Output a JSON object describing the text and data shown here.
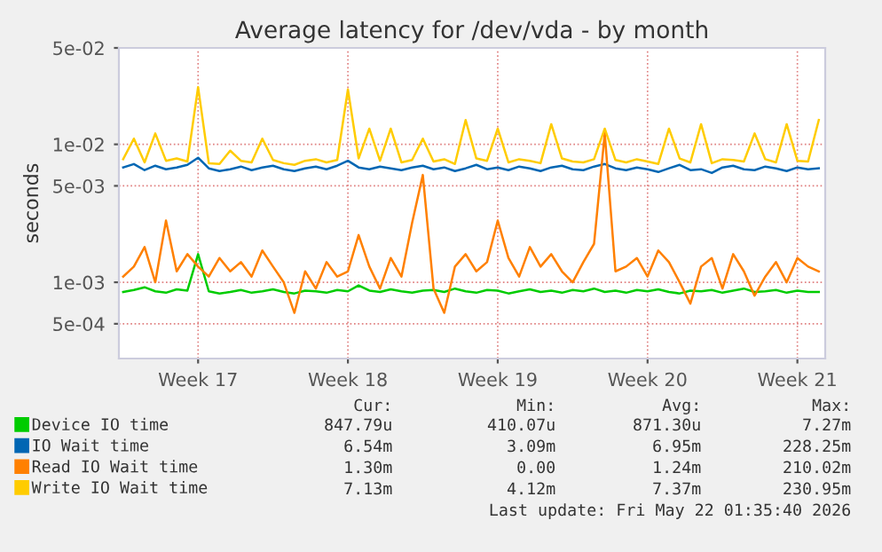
{
  "chart_data": {
    "type": "line",
    "title": "Average latency for /dev/vda - by month",
    "ylabel": "seconds",
    "log": "y",
    "grid": true,
    "legend": "bottom",
    "marker": "none",
    "line_style": "solid",
    "ylim": [
      0.00028,
      0.05
    ],
    "yticks": [
      {
        "value": 0.0005,
        "label": "5e-04"
      },
      {
        "value": 0.001,
        "label": "1e-03"
      },
      {
        "value": 0.005,
        "label": "5e-03"
      },
      {
        "value": 0.01,
        "label": "1e-02"
      },
      {
        "value": 0.05,
        "label": "5e-02"
      }
    ],
    "categories": [
      null,
      null,
      null,
      null,
      null,
      null,
      null,
      "Week 17",
      null,
      null,
      null,
      null,
      null,
      null,
      null,
      null,
      null,
      null,
      null,
      null,
      null,
      "Week 18",
      null,
      null,
      null,
      null,
      null,
      null,
      null,
      null,
      null,
      null,
      null,
      null,
      null,
      "Week 19",
      null,
      null,
      null,
      null,
      null,
      null,
      null,
      null,
      null,
      null,
      null,
      null,
      null,
      "Week 20",
      null,
      null,
      null,
      null,
      null,
      null,
      null,
      null,
      null,
      null,
      null,
      null,
      null,
      "Week 21",
      null,
      null
    ],
    "series": [
      {
        "name": "Device IO time",
        "color": "#00cc00",
        "values": [
          0.00085,
          0.00088,
          0.00092,
          0.00086,
          0.00084,
          0.00089,
          0.00087,
          0.0016,
          0.00086,
          0.00083,
          0.00085,
          0.00088,
          0.00084,
          0.00086,
          0.00089,
          0.00085,
          0.00083,
          0.00087,
          0.00086,
          0.00084,
          0.00088,
          0.00086,
          0.00095,
          0.00087,
          0.00085,
          0.00089,
          0.00086,
          0.00084,
          0.00087,
          0.00088,
          0.00085,
          0.0009,
          0.00086,
          0.00084,
          0.00088,
          0.00087,
          0.00083,
          0.00086,
          0.00089,
          0.00085,
          0.00087,
          0.00084,
          0.00088,
          0.00086,
          0.0009,
          0.00085,
          0.00087,
          0.00084,
          0.00088,
          0.00086,
          0.00089,
          0.00085,
          0.00083,
          0.00087,
          0.00086,
          0.00088,
          0.00084,
          0.00087,
          0.0009,
          0.00085,
          0.00086,
          0.00088,
          0.00084,
          0.00087,
          0.00085,
          0.00085
        ]
      },
      {
        "name": "IO Wait time",
        "color": "#0066b3",
        "values": [
          0.0068,
          0.0072,
          0.0065,
          0.007,
          0.0066,
          0.0068,
          0.0071,
          0.008,
          0.0067,
          0.0064,
          0.0066,
          0.0069,
          0.0065,
          0.0068,
          0.007,
          0.0066,
          0.0064,
          0.0067,
          0.0069,
          0.0066,
          0.007,
          0.0076,
          0.0068,
          0.0066,
          0.0069,
          0.0067,
          0.0065,
          0.0068,
          0.007,
          0.0066,
          0.0068,
          0.0064,
          0.0067,
          0.0071,
          0.0066,
          0.0068,
          0.0065,
          0.0069,
          0.0067,
          0.0064,
          0.0068,
          0.007,
          0.0066,
          0.0065,
          0.0069,
          0.0072,
          0.0067,
          0.0065,
          0.0068,
          0.0066,
          0.0063,
          0.0067,
          0.0071,
          0.0065,
          0.0066,
          0.0062,
          0.0068,
          0.007,
          0.0066,
          0.0065,
          0.0069,
          0.0067,
          0.0064,
          0.0068,
          0.0066,
          0.0067
        ]
      },
      {
        "name": "Read IO Wait time",
        "color": "#ff8000",
        "values": [
          0.0011,
          0.0013,
          0.0018,
          0.001,
          0.0028,
          0.0012,
          0.0016,
          0.0013,
          0.0011,
          0.0015,
          0.0012,
          0.0014,
          0.0011,
          0.0017,
          0.0013,
          0.001,
          0.0006,
          0.0012,
          0.0009,
          0.0014,
          0.0011,
          0.0012,
          0.0022,
          0.0013,
          0.0009,
          0.0015,
          0.0011,
          0.0027,
          0.006,
          0.0009,
          0.0006,
          0.0013,
          0.0016,
          0.0012,
          0.0014,
          0.0028,
          0.0015,
          0.0011,
          0.0018,
          0.0013,
          0.0016,
          0.0012,
          0.001,
          0.0014,
          0.0019,
          0.012,
          0.0012,
          0.0013,
          0.0015,
          0.0011,
          0.0017,
          0.0014,
          0.001,
          0.0007,
          0.0013,
          0.0015,
          0.0009,
          0.0016,
          0.0012,
          0.0008,
          0.0011,
          0.0014,
          0.001,
          0.0015,
          0.0013,
          0.0012
        ]
      },
      {
        "name": "Write IO Wait time",
        "color": "#ffcc00",
        "values": [
          0.0078,
          0.011,
          0.0074,
          0.012,
          0.0076,
          0.0079,
          0.0075,
          0.026,
          0.0073,
          0.0072,
          0.009,
          0.0076,
          0.0074,
          0.011,
          0.0077,
          0.0073,
          0.0071,
          0.0076,
          0.0078,
          0.0074,
          0.0077,
          0.025,
          0.0079,
          0.013,
          0.0076,
          0.013,
          0.0074,
          0.0077,
          0.011,
          0.0075,
          0.0078,
          0.0072,
          0.015,
          0.0079,
          0.0076,
          0.013,
          0.0074,
          0.0078,
          0.0076,
          0.0073,
          0.014,
          0.0079,
          0.0075,
          0.0074,
          0.0078,
          0.013,
          0.0077,
          0.0074,
          0.0078,
          0.0075,
          0.0072,
          0.013,
          0.0079,
          0.0074,
          0.014,
          0.0073,
          0.0078,
          0.0077,
          0.0075,
          0.012,
          0.0078,
          0.0074,
          0.014,
          0.0076,
          0.0075,
          0.015
        ]
      }
    ],
    "annotations": [
      "Cur:",
      "Min:",
      "Avg:",
      "Max:",
      "847.79u",
      "410.07u",
      "871.30u",
      "7.27m",
      "6.54m",
      "3.09m",
      "6.95m",
      "228.25m",
      "1.30m",
      "0.00",
      "1.24m",
      "210.02m",
      "7.13m",
      "4.12m",
      "7.37m",
      "230.95m",
      "Last update: Fri May 22 01:35:40 2026"
    ]
  }
}
